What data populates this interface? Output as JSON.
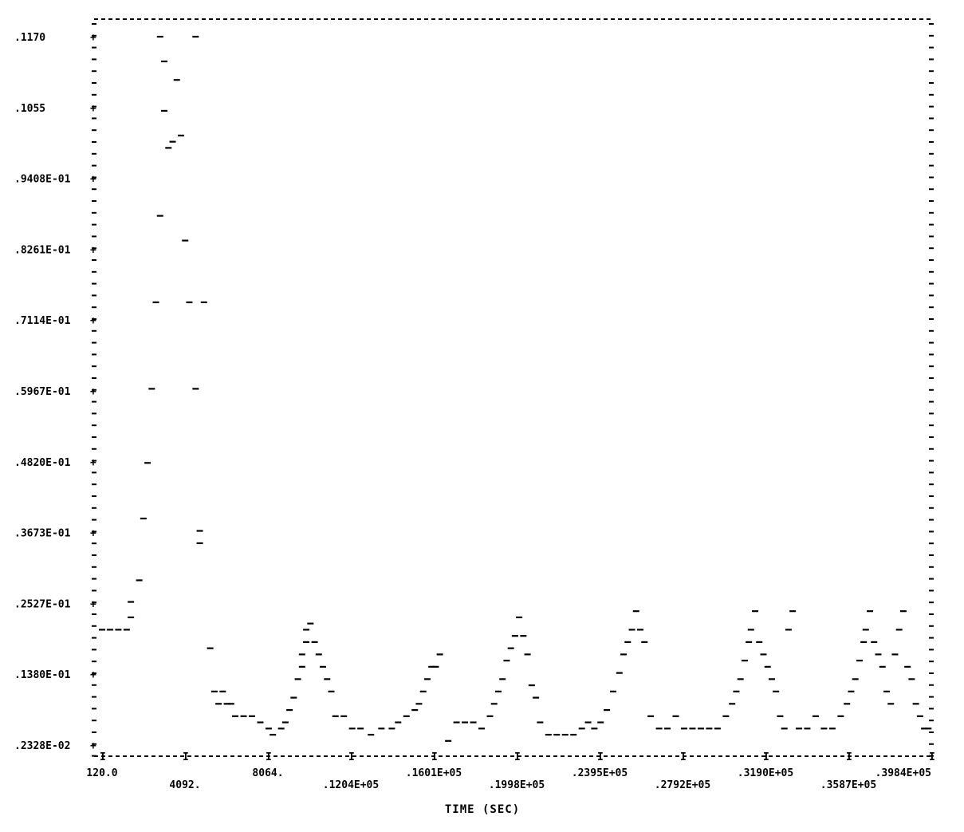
{
  "chart_data": {
    "type": "scatter",
    "title": "",
    "xlabel": "TIME (SEC)",
    "ylabel": "",
    "xlim": [
      120.0,
      39840
    ],
    "ylim": [
      0.002328,
      0.117
    ],
    "grid": false,
    "legend": "none",
    "x_tick_labels": [
      "120.0",
      "4092.",
      "8064.",
      ".1204E+05",
      ".1601E+05",
      ".1998E+05",
      ".2395E+05",
      ".2792E+05",
      ".3190E+05",
      ".3587E+05",
      ".3984E+05"
    ],
    "y_tick_labels": [
      ".1170",
      ".1055",
      ".9408E-01",
      ".8261E-01",
      ".7114E-01",
      ".5967E-01",
      ".4820E-01",
      ".3673E-01",
      ".2527E-01",
      ".1380E-01",
      ".2328E-02"
    ],
    "series": [
      {
        "marker": "dash",
        "points": [
          [
            120,
            0.021
          ],
          [
            500,
            0.021
          ],
          [
            900,
            0.021
          ],
          [
            1300,
            0.021
          ],
          [
            1500,
            0.023
          ],
          [
            1500,
            0.0255
          ],
          [
            1900,
            0.029
          ],
          [
            2100,
            0.039
          ],
          [
            2300,
            0.048
          ],
          [
            2500,
            0.06
          ],
          [
            2700,
            0.074
          ],
          [
            2900,
            0.088
          ],
          [
            2900,
            0.117
          ],
          [
            3100,
            0.113
          ],
          [
            3100,
            0.105
          ],
          [
            3300,
            0.099
          ],
          [
            3500,
            0.1
          ],
          [
            3700,
            0.11
          ],
          [
            3900,
            0.101
          ],
          [
            4100,
            0.084
          ],
          [
            4300,
            0.074
          ],
          [
            4600,
            0.06
          ],
          [
            4600,
            0.117
          ],
          [
            4800,
            0.037
          ],
          [
            4800,
            0.035
          ],
          [
            5000,
            0.074
          ],
          [
            5300,
            0.018
          ],
          [
            5500,
            0.011
          ],
          [
            5700,
            0.009
          ],
          [
            5900,
            0.011
          ],
          [
            6100,
            0.009
          ],
          [
            6300,
            0.009
          ],
          [
            6500,
            0.007
          ],
          [
            6900,
            0.007
          ],
          [
            7300,
            0.007
          ],
          [
            7700,
            0.006
          ],
          [
            8100,
            0.005
          ],
          [
            8300,
            0.004
          ],
          [
            8700,
            0.005
          ],
          [
            8900,
            0.006
          ],
          [
            9100,
            0.008
          ],
          [
            9300,
            0.01
          ],
          [
            9500,
            0.013
          ],
          [
            9700,
            0.015
          ],
          [
            9700,
            0.017
          ],
          [
            9900,
            0.019
          ],
          [
            9900,
            0.021
          ],
          [
            10100,
            0.022
          ],
          [
            10300,
            0.019
          ],
          [
            10500,
            0.017
          ],
          [
            10700,
            0.015
          ],
          [
            10900,
            0.013
          ],
          [
            11100,
            0.011
          ],
          [
            11300,
            0.007
          ],
          [
            11700,
            0.007
          ],
          [
            12100,
            0.005
          ],
          [
            12500,
            0.005
          ],
          [
            13000,
            0.004
          ],
          [
            13500,
            0.005
          ],
          [
            14000,
            0.005
          ],
          [
            14300,
            0.006
          ],
          [
            14700,
            0.007
          ],
          [
            15100,
            0.008
          ],
          [
            15300,
            0.009
          ],
          [
            15500,
            0.011
          ],
          [
            15700,
            0.013
          ],
          [
            15900,
            0.015
          ],
          [
            16100,
            0.015
          ],
          [
            16300,
            0.017
          ],
          [
            16700,
            0.003
          ],
          [
            17100,
            0.006
          ],
          [
            17500,
            0.006
          ],
          [
            17900,
            0.006
          ],
          [
            18300,
            0.005
          ],
          [
            18700,
            0.007
          ],
          [
            18900,
            0.009
          ],
          [
            19100,
            0.011
          ],
          [
            19300,
            0.013
          ],
          [
            19500,
            0.016
          ],
          [
            19700,
            0.018
          ],
          [
            19900,
            0.02
          ],
          [
            20100,
            0.023
          ],
          [
            20300,
            0.02
          ],
          [
            20500,
            0.017
          ],
          [
            20700,
            0.012
          ],
          [
            20900,
            0.01
          ],
          [
            21100,
            0.006
          ],
          [
            21500,
            0.004
          ],
          [
            21900,
            0.004
          ],
          [
            22300,
            0.004
          ],
          [
            22700,
            0.004
          ],
          [
            23100,
            0.005
          ],
          [
            23400,
            0.006
          ],
          [
            23700,
            0.005
          ],
          [
            24000,
            0.006
          ],
          [
            24300,
            0.008
          ],
          [
            24600,
            0.011
          ],
          [
            24900,
            0.014
          ],
          [
            25100,
            0.017
          ],
          [
            25300,
            0.019
          ],
          [
            25500,
            0.021
          ],
          [
            25700,
            0.024
          ],
          [
            25900,
            0.021
          ],
          [
            26100,
            0.019
          ],
          [
            26400,
            0.007
          ],
          [
            26800,
            0.005
          ],
          [
            27200,
            0.005
          ],
          [
            27600,
            0.007
          ],
          [
            28000,
            0.005
          ],
          [
            28400,
            0.005
          ],
          [
            28800,
            0.005
          ],
          [
            29200,
            0.005
          ],
          [
            29600,
            0.005
          ],
          [
            30000,
            0.007
          ],
          [
            30300,
            0.009
          ],
          [
            30500,
            0.011
          ],
          [
            30700,
            0.013
          ],
          [
            30900,
            0.016
          ],
          [
            31100,
            0.019
          ],
          [
            31200,
            0.021
          ],
          [
            31400,
            0.024
          ],
          [
            31600,
            0.019
          ],
          [
            31800,
            0.017
          ],
          [
            32000,
            0.015
          ],
          [
            32200,
            0.013
          ],
          [
            32400,
            0.011
          ],
          [
            32600,
            0.007
          ],
          [
            32800,
            0.005
          ],
          [
            33000,
            0.021
          ],
          [
            33200,
            0.024
          ],
          [
            33500,
            0.005
          ],
          [
            33900,
            0.005
          ],
          [
            34300,
            0.007
          ],
          [
            34700,
            0.005
          ],
          [
            35100,
            0.005
          ],
          [
            35500,
            0.007
          ],
          [
            35800,
            0.009
          ],
          [
            36000,
            0.011
          ],
          [
            36200,
            0.013
          ],
          [
            36400,
            0.016
          ],
          [
            36600,
            0.019
          ],
          [
            36700,
            0.021
          ],
          [
            36900,
            0.024
          ],
          [
            37100,
            0.019
          ],
          [
            37300,
            0.017
          ],
          [
            37500,
            0.015
          ],
          [
            37700,
            0.011
          ],
          [
            37900,
            0.009
          ],
          [
            38100,
            0.017
          ],
          [
            38300,
            0.021
          ],
          [
            38500,
            0.024
          ],
          [
            38700,
            0.015
          ],
          [
            38900,
            0.013
          ],
          [
            39100,
            0.009
          ],
          [
            39300,
            0.007
          ],
          [
            39500,
            0.005
          ],
          [
            39700,
            0.005
          ]
        ]
      }
    ]
  }
}
